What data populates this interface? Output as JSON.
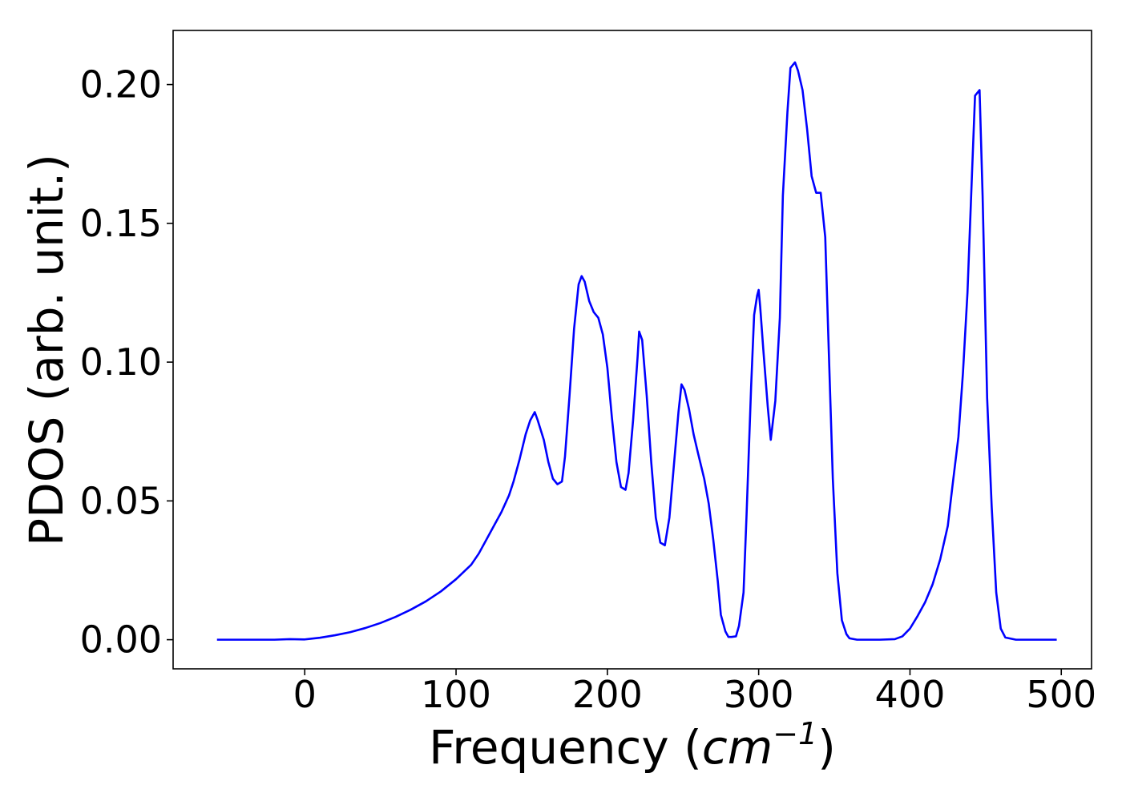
{
  "chart_data": {
    "type": "line",
    "title": "",
    "xlabel_text": "Frequency (",
    "xlabel_math_base": "cm",
    "xlabel_math_exp": "−1",
    "xlabel_close": ")",
    "ylabel": "PDOS (arb. unit.)",
    "xlim": [
      -87,
      520
    ],
    "ylim": [
      -0.0105,
      0.2195
    ],
    "x_ticks": [
      0,
      100,
      200,
      300,
      400,
      500
    ],
    "x_tick_labels": [
      "0",
      "100",
      "200",
      "300",
      "400",
      "500"
    ],
    "y_ticks": [
      0.0,
      0.05,
      0.1,
      0.15,
      0.2
    ],
    "y_tick_labels": [
      "0.00",
      "0.05",
      "0.10",
      "0.15",
      "0.20"
    ],
    "grid": false,
    "series": [
      {
        "color": "#0000ff",
        "x": [
          -58,
          -20,
          -10,
          0,
          10,
          20,
          30,
          40,
          50,
          60,
          70,
          80,
          90,
          100,
          110,
          115,
          120,
          125,
          130,
          135,
          138,
          142,
          146,
          149,
          152,
          154,
          158,
          161,
          164,
          167,
          170,
          172,
          175,
          178,
          181,
          183,
          185,
          188,
          191,
          194,
          197,
          200,
          203,
          206,
          209,
          212,
          214,
          217,
          220,
          221,
          223,
          226,
          229,
          232,
          235,
          238,
          241,
          244,
          247,
          249,
          251,
          254,
          257,
          260,
          264,
          267,
          270,
          273,
          275,
          278,
          280,
          282,
          285,
          287,
          290,
          292,
          295,
          297,
          299,
          300,
          301,
          303,
          306,
          308,
          311,
          314,
          316,
          319,
          321,
          324,
          326,
          329,
          332,
          335,
          338,
          341,
          344,
          346,
          349,
          352,
          355,
          358,
          360,
          365,
          370,
          380,
          390,
          395,
          400,
          405,
          410,
          415,
          420,
          425,
          428,
          432,
          435,
          438,
          441,
          443,
          446,
          448,
          451,
          454,
          457,
          460,
          463,
          470,
          480,
          497
        ],
        "y": [
          0.0,
          0.0,
          0.0002,
          0.0001,
          0.0007,
          0.0016,
          0.0027,
          0.0042,
          0.006,
          0.0082,
          0.0108,
          0.0138,
          0.0174,
          0.0218,
          0.027,
          0.031,
          0.036,
          0.041,
          0.046,
          0.052,
          0.057,
          0.065,
          0.074,
          0.079,
          0.082,
          0.079,
          0.072,
          0.064,
          0.058,
          0.056,
          0.057,
          0.066,
          0.088,
          0.112,
          0.128,
          0.131,
          0.129,
          0.122,
          0.118,
          0.116,
          0.11,
          0.098,
          0.08,
          0.064,
          0.055,
          0.054,
          0.06,
          0.079,
          0.102,
          0.111,
          0.108,
          0.088,
          0.064,
          0.044,
          0.035,
          0.034,
          0.044,
          0.063,
          0.082,
          0.092,
          0.09,
          0.083,
          0.074,
          0.067,
          0.058,
          0.049,
          0.036,
          0.021,
          0.009,
          0.003,
          0.001,
          0.001,
          0.0012,
          0.005,
          0.017,
          0.045,
          0.091,
          0.117,
          0.124,
          0.126,
          0.12,
          0.105,
          0.084,
          0.072,
          0.086,
          0.116,
          0.16,
          0.19,
          0.206,
          0.208,
          0.205,
          0.198,
          0.184,
          0.167,
          0.161,
          0.161,
          0.145,
          0.11,
          0.058,
          0.024,
          0.007,
          0.002,
          0.0005,
          0.0,
          0.0,
          0.0,
          0.0002,
          0.0012,
          0.004,
          0.0085,
          0.0135,
          0.02,
          0.029,
          0.041,
          0.055,
          0.073,
          0.096,
          0.125,
          0.168,
          0.196,
          0.198,
          0.16,
          0.087,
          0.048,
          0.017,
          0.004,
          0.0008,
          0.0,
          0.0,
          0.0
        ]
      }
    ]
  }
}
